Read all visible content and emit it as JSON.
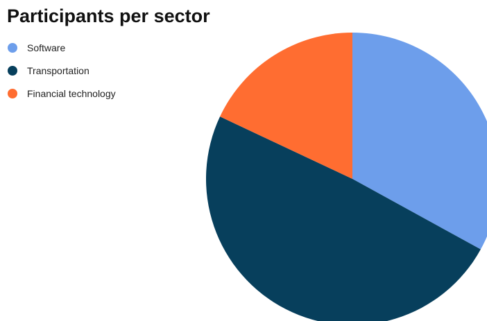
{
  "chart_data": {
    "type": "pie",
    "title": "Participants per sector",
    "legend_position": "left",
    "series": [
      {
        "name": "Software",
        "value": 33,
        "color": "#6d9eeb"
      },
      {
        "name": "Transportation",
        "value": 49,
        "color": "#073f5c"
      },
      {
        "name": "Financial technology",
        "value": 18,
        "color": "#ff6d31"
      }
    ]
  }
}
